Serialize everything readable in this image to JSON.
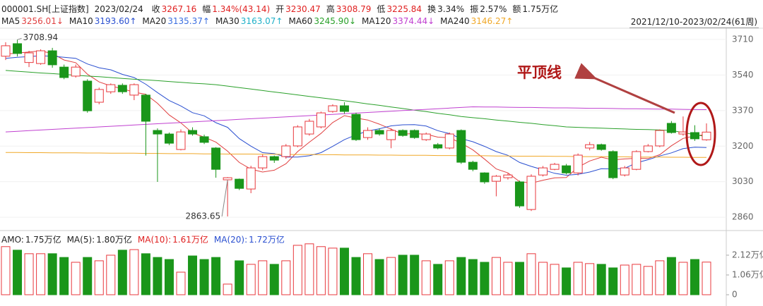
{
  "header": {
    "symbol": "000001.SH[上证指数]",
    "date": "2023/02/24",
    "quotes": [
      {
        "label": "收",
        "value": "3267.16",
        "color": "#e02020"
      },
      {
        "label": "幅",
        "value": "1.34%(43.14)",
        "color": "#e02020"
      },
      {
        "label": "开",
        "value": "3230.47",
        "color": "#e02020"
      },
      {
        "label": "高",
        "value": "3308.79",
        "color": "#e02020"
      },
      {
        "label": "低",
        "value": "3225.84",
        "color": "#e02020"
      },
      {
        "label": "换",
        "value": "3.34%",
        "color": "#222222"
      },
      {
        "label": "振",
        "value": "2.57%",
        "color": "#222222"
      },
      {
        "label": "额",
        "value": "1.75万亿",
        "color": "#222222"
      }
    ],
    "range": "2021/12/10-2023/02/24(61周)"
  },
  "chart_data": [
    {
      "type": "candlestick",
      "annotation": "平顶线",
      "up_color": "#e8383d",
      "down_color": "#1a961a",
      "ylim": [
        2803,
        3764
      ],
      "yticks": [
        3710,
        3540,
        3370,
        3200,
        3030,
        2860
      ],
      "grid": true,
      "open": [
        3630,
        3690,
        3600,
        3595,
        3656,
        3578,
        3535,
        3511,
        3410,
        3460,
        3491,
        3444,
        3444,
        3275,
        3258,
        3184,
        3275,
        3245,
        3191,
        3039,
        3042,
        2995,
        3096,
        3150,
        3150,
        3201,
        3258,
        3292,
        3366,
        3393,
        3352,
        3241,
        3275,
        3231,
        3275,
        3275,
        3231,
        3207,
        3191,
        3275,
        3123,
        3072,
        3032,
        3049,
        3029,
        2897,
        3062,
        3089,
        3106,
        3072,
        3191,
        3207,
        3174,
        3062,
        3089,
        3174,
        3201,
        3309,
        3258,
        3265,
        3230.47
      ],
      "high": [
        3697,
        3708.94,
        3656,
        3663,
        3670,
        3590,
        3590,
        3520,
        3480,
        3500,
        3500,
        3500,
        3450,
        3285,
        3265,
        3280,
        3290,
        3255,
        3195,
        3052,
        3045,
        3106,
        3160,
        3155,
        3210,
        3300,
        3330,
        3365,
        3400,
        3410,
        3360,
        3290,
        3285,
        3285,
        3280,
        3280,
        3265,
        3215,
        3265,
        3280,
        3130,
        3075,
        3062,
        3070,
        3035,
        3065,
        3105,
        3120,
        3115,
        3165,
        3220,
        3212,
        3180,
        3105,
        3180,
        3210,
        3280,
        3320,
        3342,
        3300,
        3308.79
      ],
      "low": [
        3612,
        3629,
        3578,
        3589,
        3575,
        3520,
        3528,
        3360,
        3400,
        3450,
        3450,
        3420,
        3155,
        3029,
        3205,
        3180,
        3250,
        3210,
        3049,
        2863.65,
        2990,
        2975,
        3085,
        3120,
        3140,
        3195,
        3250,
        3285,
        3360,
        3355,
        3225,
        3230,
        3250,
        3190,
        3245,
        3235,
        3225,
        3185,
        3185,
        3115,
        3080,
        3020,
        2960,
        3040,
        2905,
        2890,
        3055,
        3085,
        3065,
        3060,
        3180,
        3178,
        3042,
        3055,
        3085,
        3170,
        3195,
        3260,
        3250,
        3225,
        3225.84
      ],
      "close": [
        3680,
        3643,
        3646,
        3656,
        3589,
        3528,
        3578,
        3369,
        3471,
        3494,
        3460,
        3494,
        3319,
        3258,
        3214,
        3268,
        3258,
        3218,
        3089,
        3049,
        2998,
        3096,
        3150,
        3133,
        3201,
        3292,
        3319,
        3359,
        3393,
        3366,
        3231,
        3275,
        3258,
        3275,
        3251,
        3241,
        3258,
        3191,
        3258,
        3123,
        3089,
        3029,
        3056,
        3062,
        2914,
        3056,
        3096,
        3113,
        3072,
        3157,
        3207,
        3184,
        3049,
        3096,
        3174,
        3201,
        3275,
        3265,
        3268,
        3235,
        3267.16
      ],
      "series": [
        {
          "name": "MA5",
          "label": "3256.01↓",
          "color": "#e04040",
          "values": [
            3640,
            3645,
            3650,
            3655,
            3643,
            3612,
            3599,
            3544,
            3507,
            3488,
            3474,
            3458,
            3448,
            3405,
            3349,
            3311,
            3263,
            3243,
            3219,
            3176,
            3122,
            3090,
            3076,
            3085,
            3116,
            3174,
            3219,
            3261,
            3313,
            3346,
            3334,
            3325,
            3305,
            3281,
            3258,
            3260,
            3257,
            3243,
            3240,
            3214,
            3182,
            3138,
            3091,
            3072,
            3030,
            3023,
            3037,
            3048,
            3050,
            3099,
            3129,
            3147,
            3134,
            3139,
            3142,
            3141,
            3159,
            3202,
            3237,
            3249,
            3256.01
          ]
        },
        {
          "name": "MA10",
          "label": "3193.60↑",
          "color": "#2a4fd0",
          "values": [
            3620,
            3625,
            3628,
            3632,
            3630,
            3625,
            3620,
            3593,
            3575,
            3565,
            3543,
            3528,
            3496,
            3456,
            3418,
            3392,
            3360,
            3345,
            3312,
            3290,
            3236,
            3200,
            3169,
            3164,
            3148,
            3148,
            3154,
            3169,
            3199,
            3231,
            3254,
            3272,
            3283,
            3297,
            3302,
            3303,
            3296,
            3274,
            3260,
            3236,
            3221,
            3199,
            3174,
            3156,
            3122,
            3103,
            3087,
            3070,
            3061,
            3065,
            3076,
            3092,
            3091,
            3094,
            3120,
            3135,
            3153,
            3168,
            3188,
            3195,
            3193.6
          ]
        },
        {
          "name": "MA20",
          "label": "3135.37↑",
          "color": "#3a6ee0"
        },
        {
          "name": "MA30",
          "label": "3163.07↑",
          "color": "#20b0c8"
        },
        {
          "name": "MA60",
          "label": "3245.90↓",
          "color": "#2aa02a",
          "values": [
            3562,
            3558,
            3554,
            3550,
            3547,
            3543,
            3539,
            3535,
            3532,
            3528,
            3524,
            3520,
            3517,
            3513,
            3509,
            3505,
            3501,
            3498,
            3494,
            3487,
            3480,
            3473,
            3466,
            3459,
            3452,
            3445,
            3438,
            3431,
            3424,
            3417,
            3410,
            3402,
            3395,
            3387,
            3380,
            3372,
            3365,
            3357,
            3350,
            3342,
            3336,
            3331,
            3325,
            3320,
            3314,
            3309,
            3303,
            3298,
            3292,
            3290,
            3288,
            3286,
            3284,
            3282,
            3280,
            3279,
            3277,
            3275,
            3265,
            3255,
            3245.9
          ]
        },
        {
          "name": "MA120",
          "label": "3374.44↓",
          "color": "#c040d0",
          "values": [
            3268,
            3271,
            3274,
            3277,
            3280,
            3283,
            3286,
            3289,
            3292,
            3295,
            3298,
            3301,
            3304,
            3307,
            3310,
            3313,
            3316,
            3319,
            3322,
            3325,
            3328,
            3331,
            3334,
            3337,
            3340,
            3343,
            3346,
            3349,
            3352,
            3355,
            3358,
            3361,
            3364,
            3367,
            3370,
            3373,
            3376,
            3379,
            3382,
            3385,
            3388,
            3387,
            3387,
            3386,
            3385,
            3385,
            3384,
            3383,
            3383,
            3382,
            3381,
            3381,
            3380,
            3379,
            3379,
            3378,
            3377,
            3377,
            3376,
            3375,
            3374.44
          ]
        },
        {
          "name": "MA240",
          "label": "3146.27↑",
          "color": "#f0a828",
          "values": [
            3170,
            3170,
            3169,
            3169,
            3168,
            3168,
            3168,
            3167,
            3167,
            3166,
            3166,
            3166,
            3165,
            3165,
            3164,
            3164,
            3164,
            3163,
            3163,
            3162,
            3162,
            3162,
            3161,
            3161,
            3160,
            3160,
            3160,
            3159,
            3159,
            3158,
            3158,
            3158,
            3157,
            3157,
            3156,
            3156,
            3156,
            3155,
            3155,
            3154,
            3154,
            3154,
            3153,
            3153,
            3152,
            3152,
            3152,
            3151,
            3151,
            3150,
            3150,
            3150,
            3149,
            3149,
            3148,
            3148,
            3148,
            3147,
            3147,
            3146,
            3146.27
          ]
        }
      ]
    },
    {
      "type": "bar",
      "legend": [
        {
          "name": "AMO:",
          "value": "1.75万亿",
          "color": "#222222"
        },
        {
          "name": "MA(5):",
          "value": "1.80万亿",
          "color": "#222222"
        },
        {
          "name": "MA(10):",
          "value": "1.61万亿",
          "color": "#e02020"
        },
        {
          "name": "MA(20):",
          "value": "1.72万亿",
          "color": "#2a4fd0"
        }
      ],
      "ylim": [
        0,
        2.95
      ],
      "yticks": [
        0,
        {
          "value": 1.06,
          "label": "1.06万亿"
        },
        {
          "value": 2.12,
          "label": "2.12万亿"
        }
      ],
      "values": [
        2.58,
        2.39,
        2.2,
        2.2,
        2.2,
        2.0,
        1.74,
        2.0,
        1.82,
        2.12,
        2.39,
        2.42,
        2.2,
        2.0,
        1.89,
        1.21,
        2.08,
        1.89,
        2.0,
        0.57,
        1.82,
        1.63,
        1.82,
        1.63,
        1.82,
        2.65,
        2.73,
        2.58,
        2.5,
        2.5,
        2.0,
        2.2,
        1.89,
        2.0,
        2.12,
        2.12,
        1.82,
        1.63,
        1.82,
        2.0,
        1.89,
        1.74,
        2.0,
        1.74,
        1.74,
        2.2,
        1.74,
        1.63,
        1.44,
        1.74,
        1.67,
        1.63,
        1.44,
        1.59,
        1.63,
        1.52,
        1.82,
        2.0,
        1.74,
        1.89,
        1.75
      ]
    }
  ]
}
